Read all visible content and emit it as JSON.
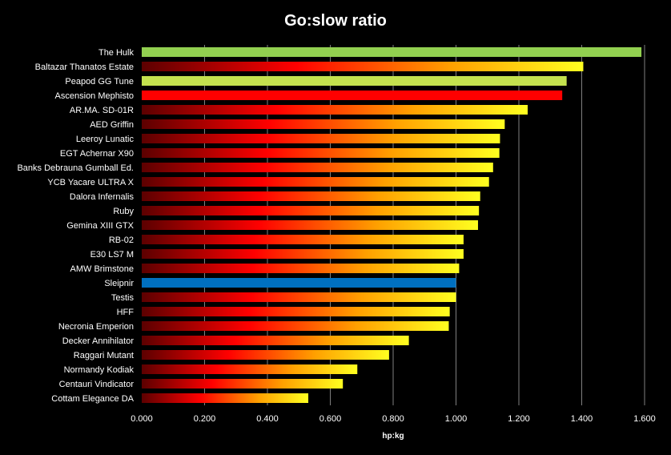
{
  "chart_data": {
    "type": "bar",
    "orientation": "horizontal",
    "title": "Go:slow ratio",
    "xlabel": "hp:kg",
    "ylabel": "",
    "xlim": [
      0,
      1.6
    ],
    "x_ticks": [
      "0.000",
      "0.200",
      "0.400",
      "0.600",
      "0.800",
      "1.000",
      "1.200",
      "1.400",
      "1.600"
    ],
    "grid": "vertical",
    "categories": [
      "The Hulk",
      "Baltazar Thanatos Estate",
      "Peapod GG Tune",
      "Ascension Mephisto",
      "AR.MA. SD-01R",
      "AED Griffin",
      "Leeroy Lunatic",
      "EGT Achernar X90",
      "Banks Debrauna Gumball Ed.",
      "YCB Yacare ULTRA X",
      "Dalora Infernalis",
      "Ruby",
      "Gemina XIII GTX",
      "RB-02",
      "E30 LS7 M",
      "AMW Brimstone",
      "Sleipnir",
      "Testis",
      "HFF",
      "Necronia Emperion",
      "Decker Annihilator",
      "Raggari Mutant",
      "Normandy Kodiak",
      "Centauri Vindicator",
      "Cottam Elegance DA"
    ],
    "values": [
      1.59,
      1.405,
      1.352,
      1.338,
      1.228,
      1.155,
      1.14,
      1.138,
      1.118,
      1.105,
      1.077,
      1.073,
      1.07,
      1.024,
      1.024,
      1.01,
      1.0,
      1.0,
      0.98,
      0.977,
      0.85,
      0.787,
      0.686,
      0.64,
      0.53
    ],
    "bar_styles": [
      "solid-green",
      "gradient",
      "solid-lime",
      "solid-red",
      "gradient",
      "gradient",
      "gradient",
      "gradient",
      "gradient",
      "gradient",
      "gradient",
      "gradient",
      "gradient",
      "gradient",
      "gradient",
      "gradient",
      "solid-blue",
      "gradient",
      "gradient",
      "gradient",
      "gradient",
      "gradient",
      "gradient",
      "gradient",
      "gradient"
    ],
    "colors": {
      "background": "#000000",
      "text": "#ffffff",
      "grid": "#7f7f7f",
      "solid-green": "#92d050",
      "solid-lime": "#c4e24e",
      "solid-red": "#ff0000",
      "solid-blue": "#0070c0",
      "gradient_stops": [
        "#5c0000",
        "#ff0000",
        "#ffa000",
        "#ffff20"
      ]
    }
  }
}
